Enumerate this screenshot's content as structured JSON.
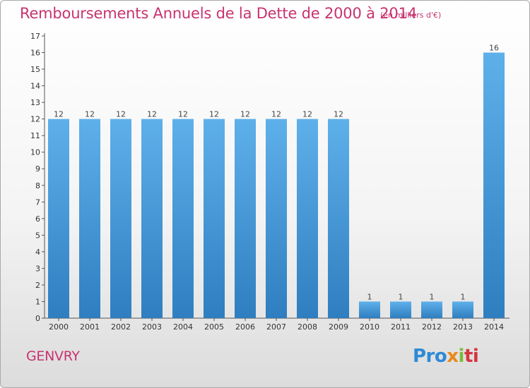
{
  "title": "Remboursements Annuels de la Dette de 2000 à 2014",
  "unit": "(en milliers d'€)",
  "city": "GENVRY",
  "logo": {
    "part1": "Pro",
    "part2": "x",
    "part3": "i",
    "part4": "ti"
  },
  "colors": {
    "title": "#c8336e",
    "bar_light": "#5eb0ea",
    "bar_dark": "#2f7ec0",
    "axis": "#555555"
  },
  "chart_data": {
    "type": "bar",
    "title": "Remboursements Annuels de la Dette de 2000 à 2014",
    "categories": [
      "2000",
      "2001",
      "2002",
      "2003",
      "2004",
      "2005",
      "2006",
      "2007",
      "2008",
      "2009",
      "2010",
      "2011",
      "2012",
      "2013",
      "2014"
    ],
    "values": [
      12,
      12,
      12,
      12,
      12,
      12,
      12,
      12,
      12,
      12,
      1,
      1,
      1,
      1,
      16
    ],
    "ylim": [
      0,
      17
    ],
    "yticks": [
      0,
      1,
      2,
      3,
      4,
      5,
      6,
      7,
      8,
      9,
      10,
      11,
      12,
      13,
      14,
      15,
      16,
      17
    ],
    "grid": false,
    "xlabel": "",
    "ylabel": ""
  }
}
